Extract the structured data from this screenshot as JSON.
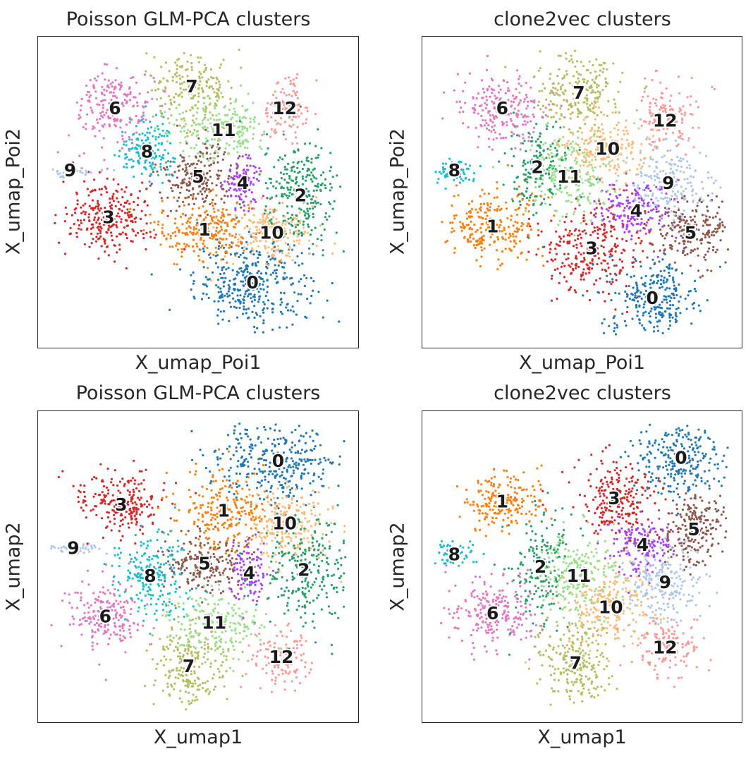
{
  "palette": [
    "#1f77b4",
    "#ff7f0e",
    "#279e68",
    "#d62728",
    "#aa40fc",
    "#8c564b",
    "#e377c2",
    "#b5bd61",
    "#17becf",
    "#aec7e8",
    "#ffbb78",
    "#98df8a",
    "#ff9896"
  ],
  "chart_data": [
    {
      "type": "scatter",
      "title": "Poisson GLM-PCA clusters",
      "xlabel": "X_umap_Poi1",
      "ylabel": "X_umap_Poi2",
      "grid": false,
      "legend": "on data",
      "xlim": [
        0,
        100
      ],
      "ylim": [
        0,
        100
      ],
      "clusters": [
        {
          "name": "0",
          "color": "#1f77b4",
          "center": [
            67,
            21
          ],
          "spread": [
            9,
            7
          ],
          "n": 360
        },
        {
          "name": "1",
          "color": "#ff7f0e",
          "center": [
            52,
            38
          ],
          "spread": [
            8,
            5
          ],
          "n": 240
        },
        {
          "name": "2",
          "color": "#279e68",
          "center": [
            82,
            49
          ],
          "spread": [
            6,
            9
          ],
          "n": 260
        },
        {
          "name": "3",
          "color": "#d62728",
          "center": [
            22,
            42
          ],
          "spread": [
            7,
            6
          ],
          "n": 260
        },
        {
          "name": "4",
          "color": "#aa40fc",
          "center": [
            64,
            53
          ],
          "spread": [
            3,
            4
          ],
          "n": 110
        },
        {
          "name": "5",
          "color": "#8c564b",
          "center": [
            50,
            55
          ],
          "spread": [
            6,
            5
          ],
          "n": 200
        },
        {
          "name": "6",
          "color": "#e377c2",
          "center": [
            24,
            77
          ],
          "spread": [
            6,
            6
          ],
          "n": 200
        },
        {
          "name": "7",
          "color": "#b5bd61",
          "center": [
            48,
            84
          ],
          "spread": [
            6,
            6
          ],
          "n": 200
        },
        {
          "name": "8",
          "color": "#17becf",
          "center": [
            34,
            63
          ],
          "spread": [
            5,
            5
          ],
          "n": 150
        },
        {
          "name": "9",
          "color": "#aec7e8",
          "center": [
            10,
            57
          ],
          "spread": [
            4,
            1
          ],
          "n": 50
        },
        {
          "name": "10",
          "color": "#ffbb78",
          "center": [
            73,
            37
          ],
          "spread": [
            6,
            5
          ],
          "n": 200
        },
        {
          "name": "11",
          "color": "#98df8a",
          "center": [
            58,
            70
          ],
          "spread": [
            8,
            5
          ],
          "n": 220
        },
        {
          "name": "12",
          "color": "#ff9896",
          "center": [
            77,
            77
          ],
          "spread": [
            4,
            5
          ],
          "n": 110
        }
      ]
    },
    {
      "type": "scatter",
      "title": "clone2vec clusters",
      "xlabel": "X_umap_Poi1",
      "ylabel": "X_umap_Poi2",
      "grid": false,
      "legend": "on data",
      "xlim": [
        0,
        100
      ],
      "ylim": [
        0,
        100
      ],
      "clusters": [
        {
          "name": "0",
          "color": "#1f77b4",
          "center": [
            72,
            16
          ],
          "spread": [
            7,
            6
          ],
          "n": 260
        },
        {
          "name": "1",
          "color": "#ff7f0e",
          "center": [
            22,
            39
          ],
          "spread": [
            8,
            6
          ],
          "n": 240
        },
        {
          "name": "2",
          "color": "#279e68",
          "center": [
            36,
            58
          ],
          "spread": [
            5,
            7
          ],
          "n": 160
        },
        {
          "name": "3",
          "color": "#d62728",
          "center": [
            53,
            32
          ],
          "spread": [
            8,
            7
          ],
          "n": 260
        },
        {
          "name": "4",
          "color": "#aa40fc",
          "center": [
            67,
            44
          ],
          "spread": [
            6,
            5
          ],
          "n": 180
        },
        {
          "name": "5",
          "color": "#8c564b",
          "center": [
            84,
            37
          ],
          "spread": [
            7,
            6
          ],
          "n": 220
        },
        {
          "name": "6",
          "color": "#e377c2",
          "center": [
            25,
            77
          ],
          "spread": [
            7,
            6
          ],
          "n": 220
        },
        {
          "name": "7",
          "color": "#b5bd61",
          "center": [
            49,
            82
          ],
          "spread": [
            7,
            7
          ],
          "n": 230
        },
        {
          "name": "8",
          "color": "#17becf",
          "center": [
            10,
            57
          ],
          "spread": [
            3,
            2
          ],
          "n": 70
        },
        {
          "name": "9",
          "color": "#aec7e8",
          "center": [
            77,
            53
          ],
          "spread": [
            6,
            6
          ],
          "n": 200
        },
        {
          "name": "10",
          "color": "#ffbb78",
          "center": [
            58,
            64
          ],
          "spread": [
            7,
            5
          ],
          "n": 200
        },
        {
          "name": "11",
          "color": "#98df8a",
          "center": [
            46,
            55
          ],
          "spread": [
            6,
            7
          ],
          "n": 200
        },
        {
          "name": "12",
          "color": "#ff9896",
          "center": [
            76,
            73
          ],
          "spread": [
            5,
            6
          ],
          "n": 130
        }
      ]
    },
    {
      "type": "scatter",
      "title": "Poisson GLM-PCA clusters",
      "xlabel": "X_umap1",
      "ylabel": "X_umap2",
      "grid": false,
      "legend": "on data",
      "xlim": [
        0,
        100
      ],
      "ylim": [
        0,
        100
      ],
      "clusters": [
        {
          "name": "0",
          "color": "#1f77b4",
          "center": [
            75,
            84
          ],
          "spread": [
            10,
            7
          ],
          "n": 320
        },
        {
          "name": "1",
          "color": "#ff7f0e",
          "center": [
            58,
            68
          ],
          "spread": [
            7,
            6
          ],
          "n": 220
        },
        {
          "name": "2",
          "color": "#279e68",
          "center": [
            83,
            49
          ],
          "spread": [
            7,
            9
          ],
          "n": 260
        },
        {
          "name": "3",
          "color": "#d62728",
          "center": [
            26,
            70
          ],
          "spread": [
            7,
            5
          ],
          "n": 230
        },
        {
          "name": "4",
          "color": "#aa40fc",
          "center": [
            66,
            48
          ],
          "spread": [
            3,
            5
          ],
          "n": 100
        },
        {
          "name": "5",
          "color": "#8c564b",
          "center": [
            52,
            51
          ],
          "spread": [
            6,
            5
          ],
          "n": 200
        },
        {
          "name": "6",
          "color": "#e377c2",
          "center": [
            21,
            34
          ],
          "spread": [
            6,
            6
          ],
          "n": 200
        },
        {
          "name": "7",
          "color": "#b5bd61",
          "center": [
            47,
            18
          ],
          "spread": [
            6,
            7
          ],
          "n": 220
        },
        {
          "name": "8",
          "color": "#17becf",
          "center": [
            35,
            47
          ],
          "spread": [
            6,
            7
          ],
          "n": 200
        },
        {
          "name": "9",
          "color": "#aec7e8",
          "center": [
            11,
            56
          ],
          "spread": [
            4,
            1
          ],
          "n": 50
        },
        {
          "name": "10",
          "color": "#ffbb78",
          "center": [
            77,
            64
          ],
          "spread": [
            7,
            6
          ],
          "n": 220
        },
        {
          "name": "11",
          "color": "#98df8a",
          "center": [
            55,
            32
          ],
          "spread": [
            8,
            5
          ],
          "n": 220
        },
        {
          "name": "12",
          "color": "#ff9896",
          "center": [
            76,
            21
          ],
          "spread": [
            5,
            5
          ],
          "n": 120
        }
      ]
    },
    {
      "type": "scatter",
      "title": "clone2vec clusters",
      "xlabel": "X_umap1",
      "ylabel": "X_umap2",
      "grid": false,
      "legend": "on data",
      "xlim": [
        0,
        100
      ],
      "ylim": [
        0,
        100
      ],
      "clusters": [
        {
          "name": "0",
          "color": "#1f77b4",
          "center": [
            81,
            85
          ],
          "spread": [
            8,
            7
          ],
          "n": 260
        },
        {
          "name": "1",
          "color": "#ff7f0e",
          "center": [
            25,
            71
          ],
          "spread": [
            6,
            5
          ],
          "n": 200
        },
        {
          "name": "2",
          "color": "#279e68",
          "center": [
            37,
            50
          ],
          "spread": [
            5,
            9
          ],
          "n": 170
        },
        {
          "name": "3",
          "color": "#d62728",
          "center": [
            60,
            72
          ],
          "spread": [
            7,
            6
          ],
          "n": 230
        },
        {
          "name": "4",
          "color": "#aa40fc",
          "center": [
            69,
            57
          ],
          "spread": [
            5,
            5
          ],
          "n": 160
        },
        {
          "name": "5",
          "color": "#8c564b",
          "center": [
            85,
            62
          ],
          "spread": [
            5,
            6
          ],
          "n": 200
        },
        {
          "name": "6",
          "color": "#e377c2",
          "center": [
            22,
            35
          ],
          "spread": [
            7,
            6
          ],
          "n": 230
        },
        {
          "name": "7",
          "color": "#b5bd61",
          "center": [
            48,
            19
          ],
          "spread": [
            6,
            7
          ],
          "n": 230
        },
        {
          "name": "8",
          "color": "#17becf",
          "center": [
            10,
            54
          ],
          "spread": [
            3,
            2
          ],
          "n": 60
        },
        {
          "name": "9",
          "color": "#aec7e8",
          "center": [
            76,
            45
          ],
          "spread": [
            6,
            7
          ],
          "n": 220
        },
        {
          "name": "10",
          "color": "#ffbb78",
          "center": [
            59,
            37
          ],
          "spread": [
            7,
            6
          ],
          "n": 220
        },
        {
          "name": "11",
          "color": "#98df8a",
          "center": [
            49,
            47
          ],
          "spread": [
            6,
            7
          ],
          "n": 220
        },
        {
          "name": "12",
          "color": "#ff9896",
          "center": [
            76,
            24
          ],
          "spread": [
            5,
            5
          ],
          "n": 140
        }
      ]
    }
  ]
}
